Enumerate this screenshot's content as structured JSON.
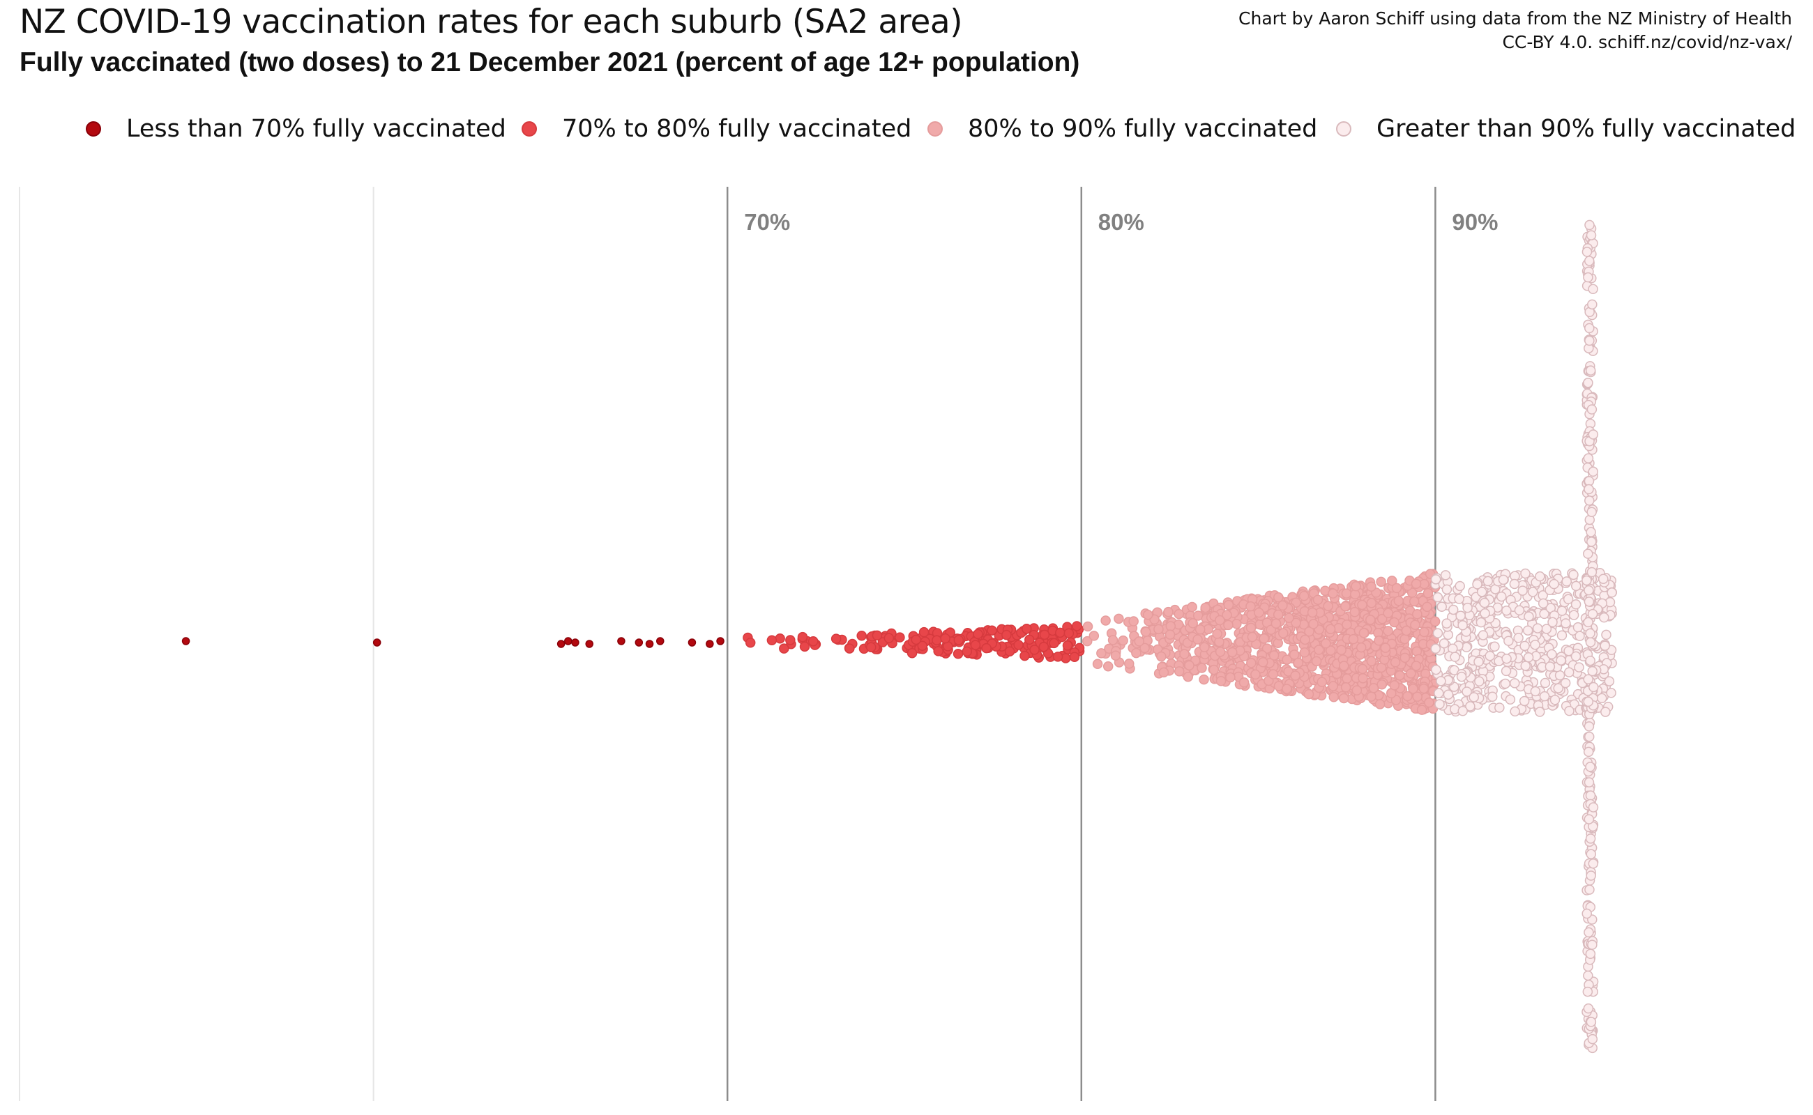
{
  "title": "NZ COVID-19 vaccination rates for each suburb (SA2 area)",
  "subtitle": "Fully vaccinated (two doses) to 21 December 2021 (percent of age 12+ population)",
  "credit": {
    "line1": "Chart by Aaron Schiff using data from the NZ Ministry of Health",
    "line2": "CC-BY 4.0. schiff.nz/covid/nz-vax/"
  },
  "legend": [
    {
      "label": "Less than 70% fully vaccinated",
      "color": "#b3090f",
      "stroke": "#8a0008",
      "icon": "filled-circle"
    },
    {
      "label": "70% to 80% fully vaccinated",
      "color": "#e8464a",
      "stroke": "#d63a3e",
      "icon": "filled-circle"
    },
    {
      "label": "80% to 90% fully vaccinated",
      "color": "#f0aaaa",
      "stroke": "#e59c9c",
      "icon": "filled-circle"
    },
    {
      "label": "Greater than 90% fully vaccinated",
      "color": "#fbeced",
      "stroke": "#d9b9bc",
      "icon": "outlined-circle"
    }
  ],
  "chart_data": {
    "type": "scatter",
    "subtype": "beeswarm",
    "title": "NZ COVID-19 vaccination rates for each suburb (SA2 area)",
    "xlabel": "",
    "ylabel": "",
    "xlim": [
      50,
      100
    ],
    "gridlines": [
      50,
      60
    ],
    "reference_lines": [
      {
        "value": 70,
        "label": "70%"
      },
      {
        "value": 80,
        "label": "80%"
      },
      {
        "value": 90,
        "label": "90%"
      }
    ],
    "grid": false,
    "legend_position": "top",
    "capped_value": 100,
    "series": [
      {
        "name": "Less than 70% fully vaccinated",
        "values": [
          54.7,
          60.1,
          65.3,
          65.5,
          65.7,
          66.1,
          67.0,
          67.5,
          67.8,
          68.1,
          69.0,
          69.5,
          69.8
        ],
        "distribution": {
          "from": 54.7,
          "to": 70,
          "count": 13
        }
      },
      {
        "name": "70% to 80% fully vaccinated",
        "distribution": {
          "from": 70,
          "to": 80,
          "count": 190,
          "shape": "increasing",
          "peak_spread": 0.25
        }
      },
      {
        "name": "80% to 90% fully vaccinated",
        "distribution": {
          "from": 80,
          "to": 90,
          "count": 1150,
          "shape": "increasing",
          "peak_spread": 1.0
        }
      },
      {
        "name": "Greater than 90% fully vaccinated",
        "distribution": {
          "from": 90,
          "to": 95,
          "count": 520,
          "shape": "dense",
          "peak_spread": 1.0,
          "capped_count": 260
        }
      }
    ]
  }
}
